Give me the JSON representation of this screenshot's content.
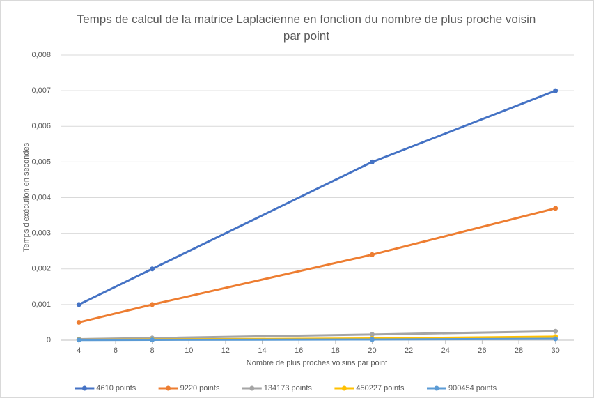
{
  "chart_data": {
    "type": "line",
    "title": "Temps de calcul de la matrice Laplacienne en fonction du nombre de plus proche voisin par point",
    "x_label": "Nombre de plus proches voisins par point",
    "y_label": "Temps d'exécution en secondes",
    "x": [
      4,
      8,
      20,
      30
    ],
    "series": [
      {
        "name": "4610 points",
        "color": "#4472c4",
        "values": [
          0.001,
          0.002,
          0.005,
          0.007
        ]
      },
      {
        "name": "9220 points",
        "color": "#ed7d31",
        "values": [
          0.0005,
          0.001,
          0.0024,
          0.0037
        ]
      },
      {
        "name": "134173 points",
        "color": "#a5a5a5",
        "values": [
          3e-05,
          6e-05,
          0.00016,
          0.00025
        ]
      },
      {
        "name": "450227 points",
        "color": "#ffc000",
        "values": [
          1e-05,
          2e-05,
          5e-05,
          0.0001
        ]
      },
      {
        "name": "900454 points",
        "color": "#5b9bd5",
        "values": [
          5e-06,
          1e-05,
          2e-05,
          4e-05
        ]
      }
    ],
    "xlim": [
      3,
      31
    ],
    "xticks": [
      4,
      6,
      8,
      10,
      12,
      14,
      16,
      18,
      20,
      22,
      24,
      26,
      28,
      30
    ],
    "ylim": [
      0,
      0.008
    ],
    "yticks": [
      0,
      {
        "value": 0.001,
        "label": "0,001"
      },
      {
        "value": 0.002,
        "label": "0,002"
      },
      {
        "value": 0.003,
        "label": "0,003"
      },
      {
        "value": 0.004,
        "label": "0,004"
      },
      {
        "value": 0.005,
        "label": "0,005"
      },
      {
        "value": 0.006,
        "label": "0,006"
      },
      {
        "value": 0.007,
        "label": "0,007"
      },
      {
        "value": 0.008,
        "label": "0,008"
      }
    ],
    "grid": true,
    "legend": "bottom"
  }
}
